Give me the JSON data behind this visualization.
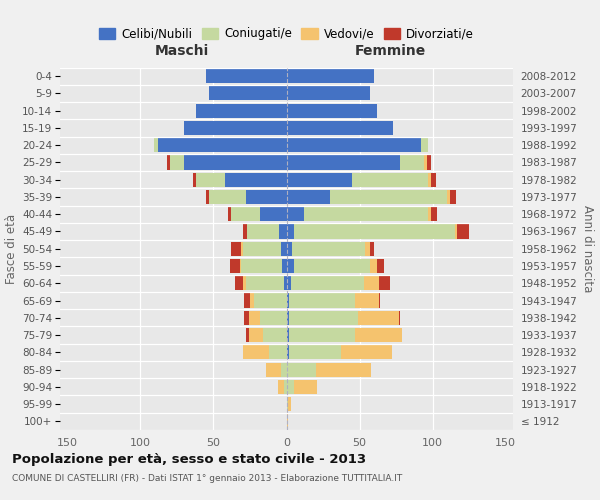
{
  "age_groups": [
    "100+",
    "95-99",
    "90-94",
    "85-89",
    "80-84",
    "75-79",
    "70-74",
    "65-69",
    "60-64",
    "55-59",
    "50-54",
    "45-49",
    "40-44",
    "35-39",
    "30-34",
    "25-29",
    "20-24",
    "15-19",
    "10-14",
    "5-9",
    "0-4"
  ],
  "birth_years": [
    "≤ 1912",
    "1913-1917",
    "1918-1922",
    "1923-1927",
    "1928-1932",
    "1933-1937",
    "1938-1942",
    "1943-1947",
    "1948-1952",
    "1953-1957",
    "1958-1962",
    "1963-1967",
    "1968-1972",
    "1973-1977",
    "1978-1982",
    "1983-1987",
    "1988-1992",
    "1993-1997",
    "1998-2002",
    "2003-2007",
    "2008-2012"
  ],
  "male_celibe": [
    0,
    0,
    0,
    0,
    0,
    0,
    0,
    0,
    2,
    3,
    4,
    5,
    18,
    28,
    42,
    70,
    88,
    70,
    62,
    53,
    55
  ],
  "male_coniugato": [
    0,
    0,
    2,
    4,
    12,
    16,
    18,
    22,
    26,
    28,
    26,
    22,
    20,
    25,
    20,
    10,
    3,
    0,
    0,
    0,
    0
  ],
  "male_vedovo": [
    0,
    0,
    4,
    10,
    18,
    10,
    8,
    3,
    2,
    1,
    1,
    0,
    0,
    0,
    0,
    0,
    0,
    0,
    0,
    0,
    0
  ],
  "male_divorziato": [
    0,
    0,
    0,
    0,
    0,
    2,
    3,
    4,
    5,
    7,
    7,
    3,
    2,
    2,
    2,
    2,
    0,
    0,
    0,
    0,
    0
  ],
  "fem_nubile": [
    0,
    0,
    0,
    0,
    2,
    2,
    2,
    2,
    3,
    5,
    4,
    5,
    12,
    30,
    45,
    78,
    92,
    73,
    62,
    57,
    60
  ],
  "fem_coniugata": [
    0,
    1,
    5,
    20,
    35,
    45,
    47,
    45,
    50,
    52,
    50,
    110,
    85,
    80,
    52,
    16,
    5,
    0,
    0,
    0,
    0
  ],
  "fem_vedova": [
    1,
    2,
    16,
    38,
    35,
    32,
    28,
    16,
    10,
    5,
    3,
    2,
    2,
    2,
    2,
    2,
    0,
    0,
    0,
    0,
    0
  ],
  "fem_divorziata": [
    0,
    0,
    0,
    0,
    0,
    0,
    1,
    1,
    8,
    5,
    3,
    8,
    4,
    4,
    3,
    3,
    0,
    0,
    0,
    0,
    0
  ],
  "color_celibe": "#4472c4",
  "color_coniugato": "#c5d9a0",
  "color_vedovo": "#f5c36e",
  "color_divorziato": "#c0392b",
  "legend_labels": [
    "Celibi/Nubili",
    "Coniugati/e",
    "Vedovi/e",
    "Divorziati/e"
  ],
  "title": "Popolazione per età, sesso e stato civile - 2013",
  "subtitle": "COMUNE DI CASTELLIRI (FR) - Dati ISTAT 1° gennaio 2013 - Elaborazione TUTTITALIA.IT",
  "label_maschi": "Maschi",
  "label_femmine": "Femmine",
  "ylabel_left": "Fasce di età",
  "ylabel_right": "Anni di nascita",
  "xlim": 155,
  "bg_color": "#e8e8e8",
  "fig_bg": "#f0f0f0"
}
